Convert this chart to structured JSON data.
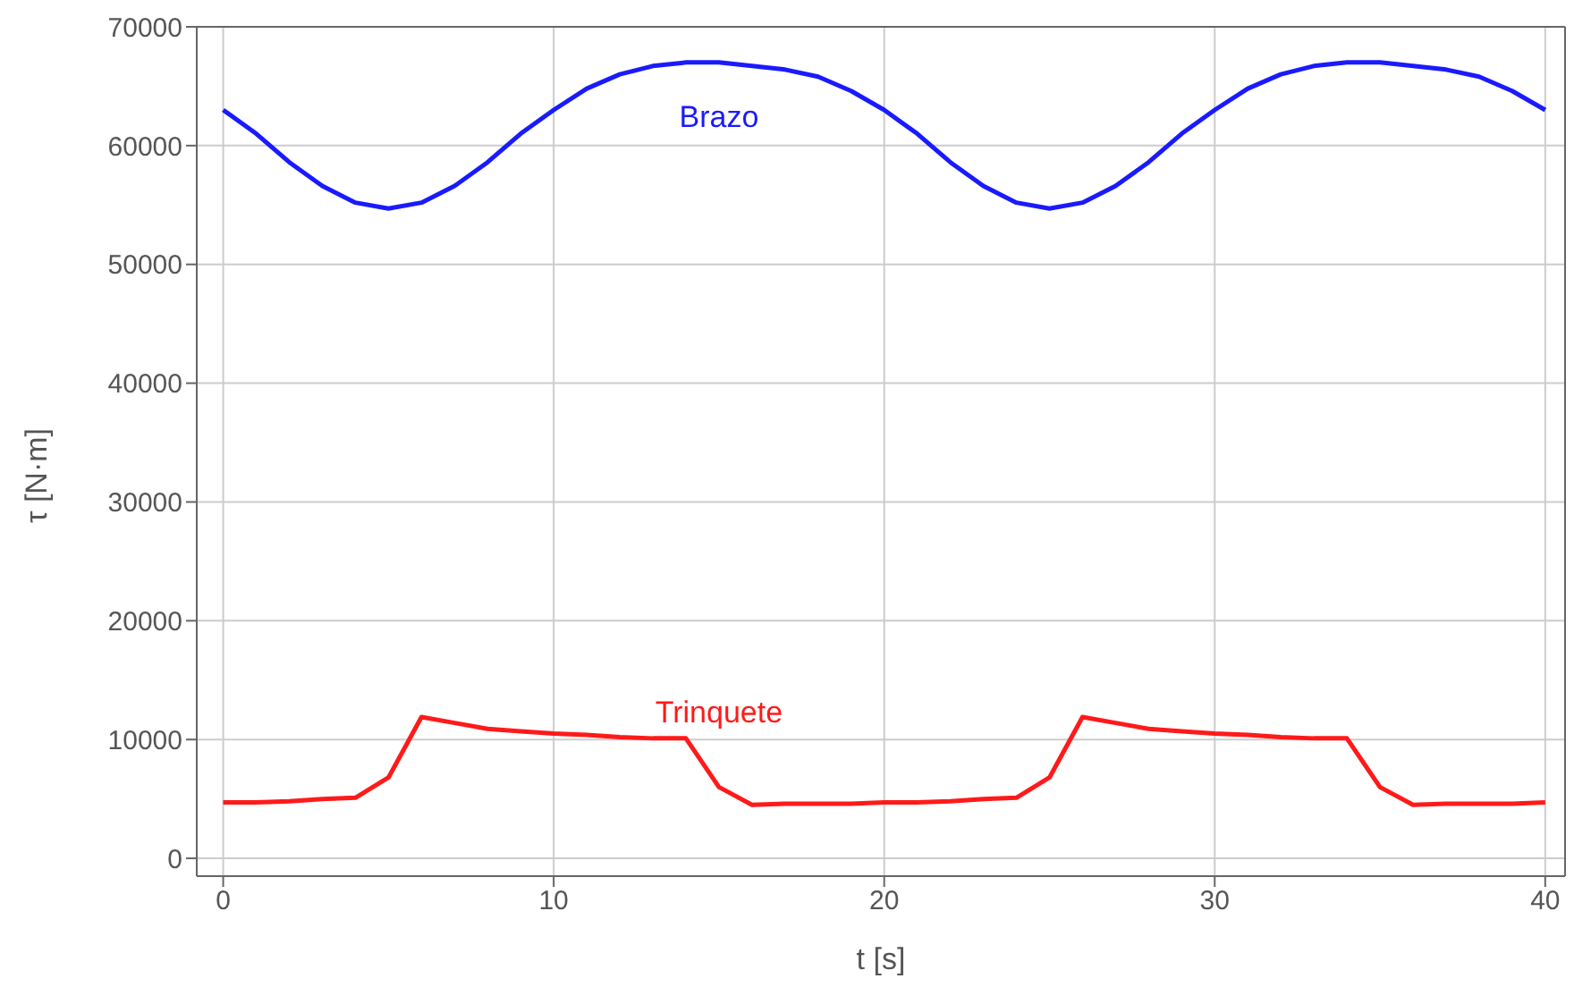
{
  "chart_data": {
    "type": "line",
    "xlabel": "t [s]",
    "ylabel": "τ [N·m]",
    "x": [
      0,
      1,
      2,
      3,
      4,
      5,
      6,
      7,
      8,
      9,
      10,
      11,
      12,
      13,
      14,
      15,
      16,
      17,
      18,
      19,
      20,
      21,
      22,
      23,
      24,
      25,
      26,
      27,
      28,
      29,
      30,
      31,
      32,
      33,
      34,
      35,
      36,
      37,
      38,
      39,
      40
    ],
    "series": [
      {
        "name": "Brazo",
        "color": "#1a1aff",
        "values": [
          63000,
          61000,
          58600,
          56600,
          55200,
          54700,
          55200,
          56600,
          58600,
          61000,
          63000,
          64800,
          66000,
          66700,
          67000,
          67000,
          66700,
          66400,
          65800,
          64600,
          63000,
          61000,
          58600,
          56600,
          55200,
          54700,
          55200,
          56600,
          58600,
          61000,
          63000,
          64800,
          66000,
          66700,
          67000,
          67000,
          66700,
          66400,
          65800,
          64600,
          63000
        ]
      },
      {
        "name": "Trinquete",
        "color": "#ff1a1a",
        "values": [
          4700,
          4700,
          4800,
          5000,
          5100,
          6800,
          11900,
          11400,
          10900,
          10700,
          10500,
          10400,
          10200,
          10100,
          10100,
          6000,
          4500,
          4600,
          4600,
          4600,
          4700,
          4700,
          4800,
          5000,
          5100,
          6800,
          11900,
          11400,
          10900,
          10700,
          10500,
          10400,
          10200,
          10100,
          10100,
          6000,
          4500,
          4600,
          4600,
          4600,
          4700
        ]
      }
    ],
    "xlim": [
      -0.8,
      40.6
    ],
    "xticks": [
      0,
      10,
      20,
      30,
      40
    ],
    "ylim": [
      -1500,
      70000
    ],
    "yticks": [
      0,
      10000,
      20000,
      30000,
      40000,
      50000,
      60000,
      70000
    ],
    "grid": true,
    "legend": false,
    "marker": "none",
    "line_style": "solid"
  }
}
